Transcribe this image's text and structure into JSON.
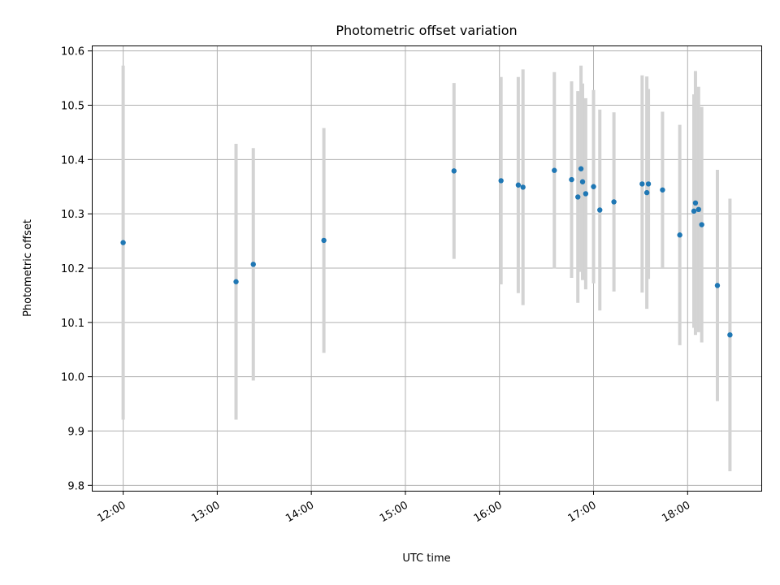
{
  "chart_data": {
    "type": "scatter",
    "title": "Photometric offset variation",
    "xlabel": "UTC time",
    "ylabel": "Photometric offset",
    "x_axis": "time",
    "xlim": [
      "11:40",
      "18:47"
    ],
    "ylim": [
      9.79,
      10.61
    ],
    "x_ticks": [
      "12:00",
      "13:00",
      "14:00",
      "15:00",
      "16:00",
      "17:00",
      "18:00"
    ],
    "y_ticks": [
      9.8,
      9.9,
      10.0,
      10.1,
      10.2,
      10.3,
      10.4,
      10.5,
      10.6
    ],
    "grid": true,
    "point_color": "#1f77b4",
    "errorbar_color": "#d3d3d3",
    "points": [
      {
        "x": "12:00",
        "y": 10.247,
        "err": 0.326
      },
      {
        "x": "13:12",
        "y": 10.175,
        "err": 0.254
      },
      {
        "x": "13:23",
        "y": 10.207,
        "err": 0.214
      },
      {
        "x": "14:08",
        "y": 10.251,
        "err": 0.207
      },
      {
        "x": "15:31",
        "y": 10.379,
        "err": 0.162
      },
      {
        "x": "16:01",
        "y": 10.361,
        "err": 0.191
      },
      {
        "x": "16:12",
        "y": 10.353,
        "err": 0.199
      },
      {
        "x": "16:15",
        "y": 10.349,
        "err": 0.217
      },
      {
        "x": "16:35",
        "y": 10.38,
        "err": 0.181
      },
      {
        "x": "16:46",
        "y": 10.363,
        "err": 0.181
      },
      {
        "x": "16:50",
        "y": 10.331,
        "err": 0.195
      },
      {
        "x": "16:52",
        "y": 10.383,
        "err": 0.19
      },
      {
        "x": "16:53",
        "y": 10.359,
        "err": 0.181
      },
      {
        "x": "16:55",
        "y": 10.337,
        "err": 0.176
      },
      {
        "x": "17:00",
        "y": 10.35,
        "err": 0.178
      },
      {
        "x": "17:04",
        "y": 10.307,
        "err": 0.185
      },
      {
        "x": "17:13",
        "y": 10.322,
        "err": 0.165
      },
      {
        "x": "17:31",
        "y": 10.355,
        "err": 0.2
      },
      {
        "x": "17:34",
        "y": 10.339,
        "err": 0.214
      },
      {
        "x": "17:35",
        "y": 10.355,
        "err": 0.175
      },
      {
        "x": "17:44",
        "y": 10.344,
        "err": 0.144
      },
      {
        "x": "17:55",
        "y": 10.261,
        "err": 0.203
      },
      {
        "x": "18:04",
        "y": 10.305,
        "err": 0.215
      },
      {
        "x": "18:05",
        "y": 10.32,
        "err": 0.243
      },
      {
        "x": "18:07",
        "y": 10.308,
        "err": 0.226
      },
      {
        "x": "18:09",
        "y": 10.28,
        "err": 0.217
      },
      {
        "x": "18:19",
        "y": 10.168,
        "err": 0.213
      },
      {
        "x": "18:27",
        "y": 10.077,
        "err": 0.251
      }
    ]
  }
}
